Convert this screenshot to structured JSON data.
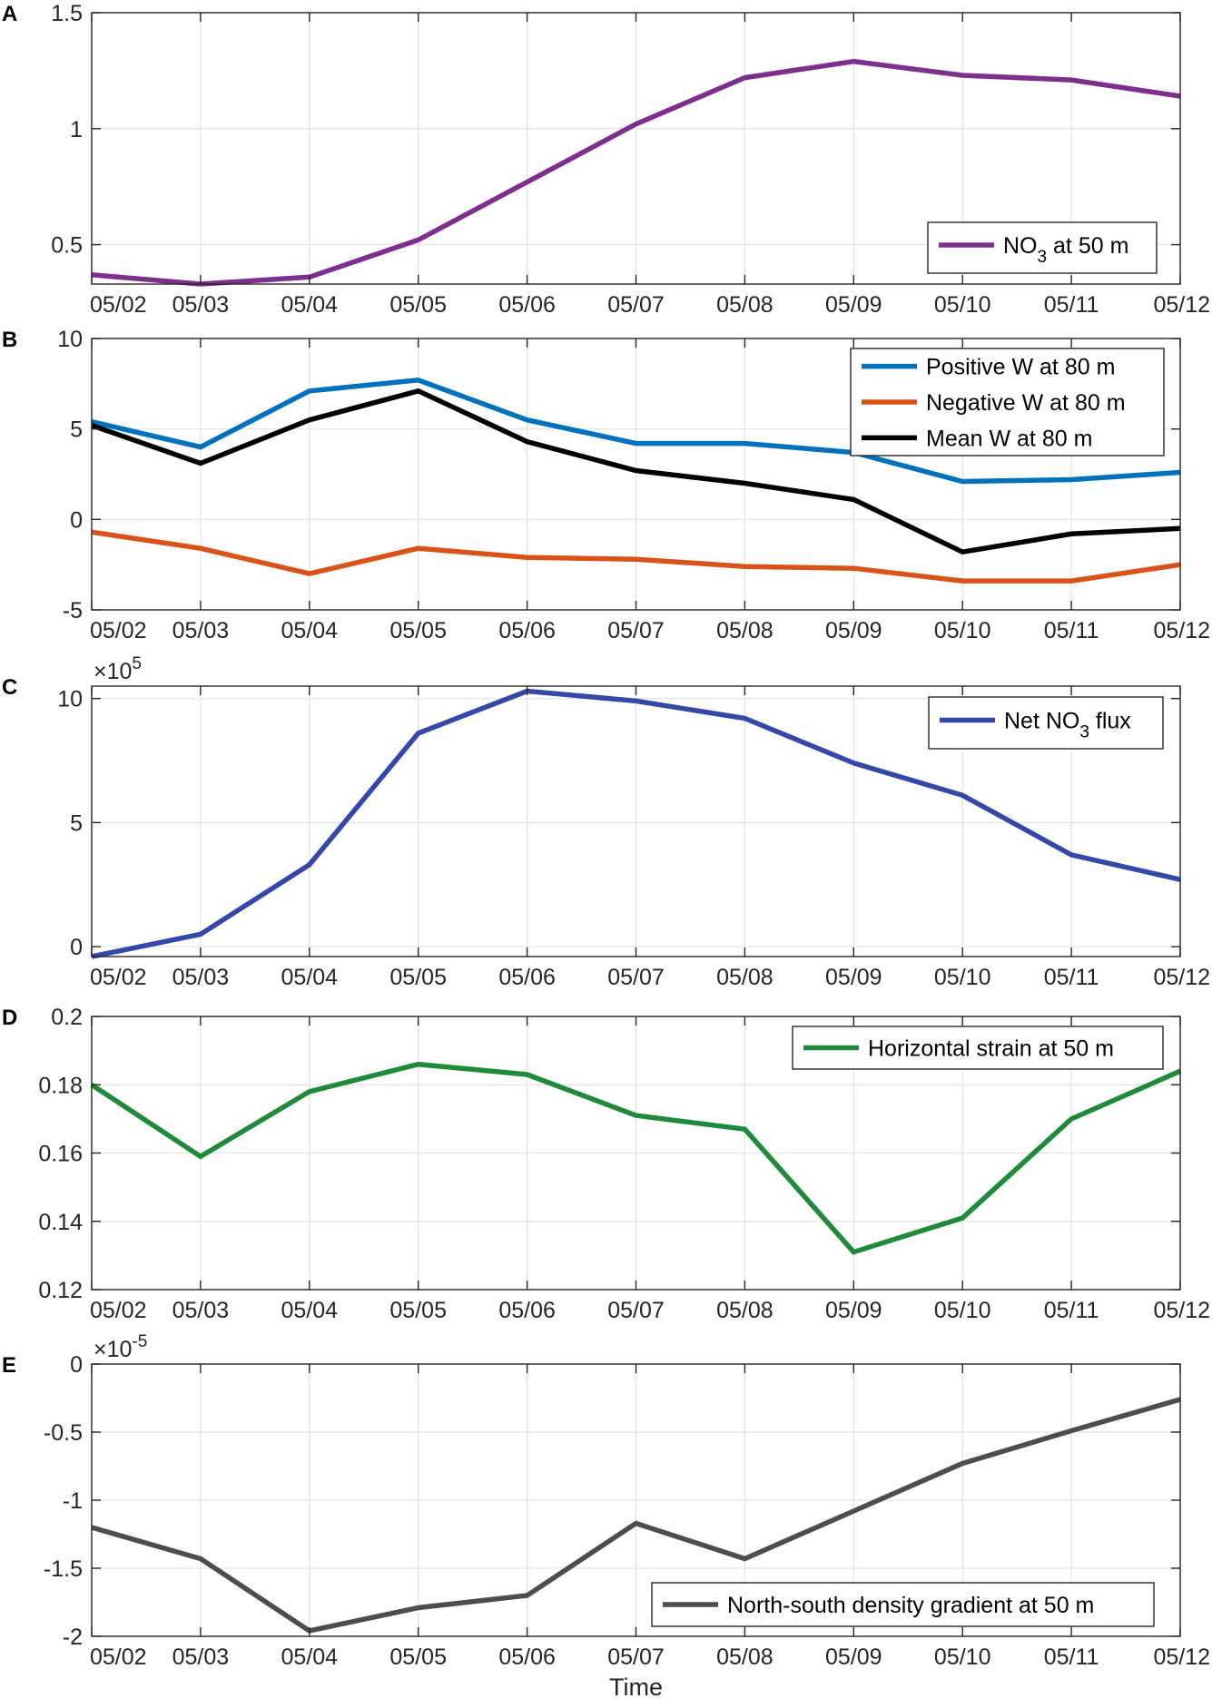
{
  "chart_data": [
    {
      "panel": "A",
      "type": "line",
      "categories": [
        "05/02",
        "05/03",
        "05/04",
        "05/05",
        "05/06",
        "05/07",
        "05/08",
        "05/09",
        "05/10",
        "05/11",
        "05/12"
      ],
      "ylim": [
        0.33,
        1.5
      ],
      "yticks": [
        0.5,
        1,
        1.5
      ],
      "ytick_labels": [
        "0.5",
        "1",
        "1.5"
      ],
      "exponent": null,
      "legend_position": "bottom-right",
      "series": [
        {
          "name": "NO3 at 50 m",
          "label_main": "NO",
          "label_sub": "3",
          "label_tail": " at 50 m",
          "color": "#7e2f8e",
          "values": [
            0.37,
            0.33,
            0.36,
            0.52,
            0.77,
            1.02,
            1.22,
            1.29,
            1.23,
            1.21,
            1.14
          ]
        }
      ]
    },
    {
      "panel": "B",
      "type": "line",
      "categories": [
        "05/02",
        "05/03",
        "05/04",
        "05/05",
        "05/06",
        "05/07",
        "05/08",
        "05/09",
        "05/10",
        "05/11",
        "05/12"
      ],
      "ylim": [
        -5,
        10
      ],
      "yticks": [
        -5,
        0,
        5,
        10
      ],
      "ytick_labels": [
        "-5",
        "0",
        "5",
        "10"
      ],
      "exponent": null,
      "legend_position": "top-right",
      "series": [
        {
          "name": "Positive W at 80 m",
          "label_main": "Positive W at 80 m",
          "color": "#0072bd",
          "values": [
            5.4,
            4.0,
            7.1,
            7.7,
            5.5,
            4.2,
            4.2,
            3.7,
            2.1,
            2.2,
            2.6
          ]
        },
        {
          "name": "Negative W at 80 m",
          "label_main": "Negative W at 80 m",
          "color": "#d95319",
          "values": [
            -0.7,
            -1.6,
            -3.0,
            -1.6,
            -2.1,
            -2.2,
            -2.6,
            -2.7,
            -3.4,
            -3.4,
            -2.5
          ]
        },
        {
          "name": "Mean W at 80 m",
          "label_main": "Mean W at 80 m",
          "color": "#000000",
          "values": [
            5.2,
            3.1,
            5.5,
            7.1,
            4.3,
            2.7,
            2.0,
            1.1,
            -1.8,
            -0.8,
            -0.5
          ]
        }
      ]
    },
    {
      "panel": "C",
      "type": "line",
      "categories": [
        "05/02",
        "05/03",
        "05/04",
        "05/05",
        "05/06",
        "05/07",
        "05/08",
        "05/09",
        "05/10",
        "05/11",
        "05/12"
      ],
      "ylim": [
        -0.4,
        10.5
      ],
      "yticks": [
        0,
        5,
        10
      ],
      "ytick_labels": [
        "0",
        "5",
        "10"
      ],
      "exponent": "5",
      "legend_position": "top-right",
      "series": [
        {
          "name": "Net NO3 flux",
          "label_main": "Net NO",
          "label_sub": "3",
          "label_tail": " flux",
          "color": "#3547a8",
          "values": [
            -0.4,
            0.5,
            3.3,
            8.6,
            10.3,
            9.9,
            9.2,
            7.4,
            6.1,
            3.7,
            2.7
          ]
        }
      ]
    },
    {
      "panel": "D",
      "type": "line",
      "categories": [
        "05/02",
        "05/03",
        "05/04",
        "05/05",
        "05/06",
        "05/07",
        "05/08",
        "05/09",
        "05/10",
        "05/11",
        "05/12"
      ],
      "ylim": [
        0.12,
        0.2
      ],
      "yticks": [
        0.12,
        0.14,
        0.16,
        0.18,
        0.2
      ],
      "ytick_labels": [
        "0.12",
        "0.14",
        "0.16",
        "0.18",
        "0.2"
      ],
      "exponent": null,
      "legend_position": "top-right",
      "series": [
        {
          "name": "Horizontal strain at 50 m",
          "label_main": "Horizontal strain at 50 m",
          "color": "#1e8a3a",
          "values": [
            0.18,
            0.159,
            0.178,
            0.186,
            0.183,
            0.171,
            0.167,
            0.131,
            0.141,
            0.17,
            0.184
          ]
        }
      ]
    },
    {
      "panel": "E",
      "type": "line",
      "categories": [
        "05/02",
        "05/03",
        "05/04",
        "05/05",
        "05/06",
        "05/07",
        "05/08",
        "05/09",
        "05/10",
        "05/11",
        "05/12"
      ],
      "ylim": [
        -2,
        0
      ],
      "yticks": [
        -2,
        -1.5,
        -1,
        -0.5,
        0
      ],
      "ytick_labels": [
        "-2",
        "-1.5",
        "-1",
        "-0.5",
        "0"
      ],
      "exponent": "-5",
      "xlabel": "Time",
      "legend_position": "bottom-right",
      "series": [
        {
          "name": "North-south density gradient at 50 m",
          "label_main": "North-south density gradient at 50 m",
          "color": "#4d4d4d",
          "values": [
            -1.2,
            -1.43,
            -1.96,
            -1.79,
            -1.7,
            -1.17,
            -1.43,
            -1.08,
            -0.73,
            -0.49,
            -0.26
          ]
        }
      ]
    }
  ]
}
